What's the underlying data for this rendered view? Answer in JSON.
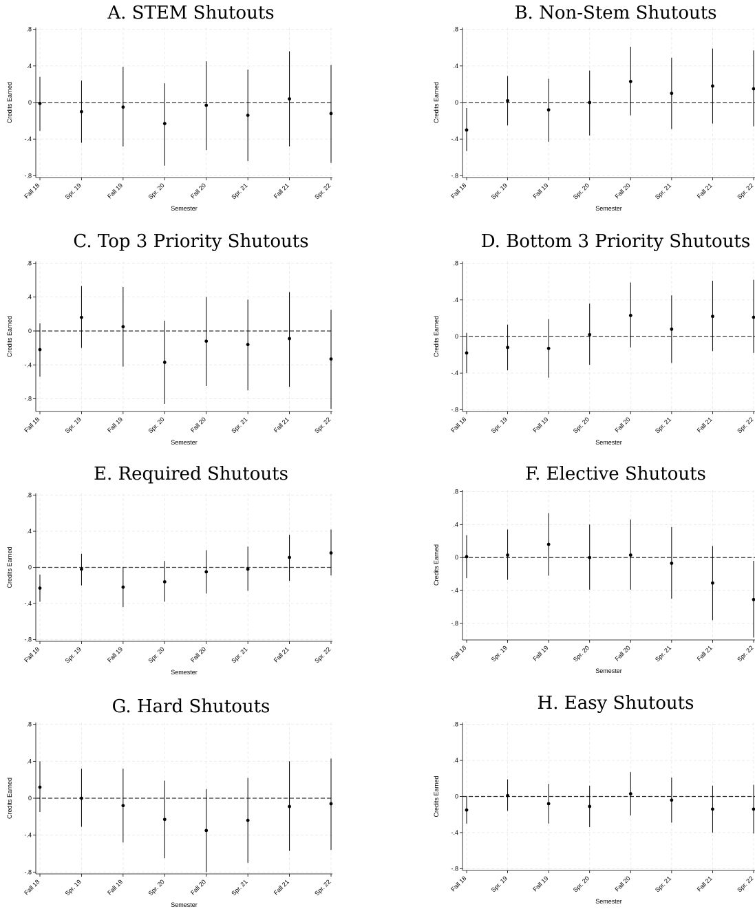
{
  "chart_data": [
    {
      "type": "scatter",
      "title": "A. STEM Shutouts",
      "xlabel": "Semester",
      "ylabel": "Credits Earned",
      "categories": [
        "Fall 18",
        "Spr. 19",
        "Fall 19",
        "Spr. 20",
        "Fall 20",
        "Spr. 21",
        "Fall 21",
        "Spr. 22"
      ],
      "ylim": [
        -0.82,
        0.82
      ],
      "yticks": [
        ".8",
        ".4",
        "0",
        "-.4",
        "-.8"
      ],
      "estimates": [
        -0.01,
        -0.1,
        -0.05,
        -0.23,
        -0.03,
        -0.14,
        0.04,
        -0.12
      ],
      "ci_low": [
        -0.31,
        -0.44,
        -0.48,
        -0.69,
        -0.52,
        -0.64,
        -0.48,
        -0.66
      ],
      "ci_high": [
        0.28,
        0.24,
        0.39,
        0.21,
        0.45,
        0.36,
        0.56,
        0.41
      ]
    },
    {
      "type": "scatter",
      "title": "B. Non-Stem Shutouts",
      "xlabel": "Semester",
      "ylabel": "Credits Earned",
      "categories": [
        "Fall 18",
        "Spr. 19",
        "Fall 19",
        "Spr. 20",
        "Fall 20",
        "Spr. 21",
        "Fall 21",
        "Spr. 22"
      ],
      "ylim": [
        -0.82,
        0.82
      ],
      "yticks": [
        ".8",
        ".4",
        "0",
        "-.4",
        "-.8"
      ],
      "estimates": [
        -0.3,
        0.02,
        -0.08,
        0.0,
        0.23,
        0.1,
        0.18,
        0.15
      ],
      "ci_low": [
        -0.53,
        -0.25,
        -0.43,
        -0.36,
        -0.14,
        -0.29,
        -0.23,
        -0.26
      ],
      "ci_high": [
        -0.06,
        0.29,
        0.26,
        0.35,
        0.61,
        0.49,
        0.59,
        0.57
      ]
    },
    {
      "type": "scatter",
      "title": "C. Top 3 Priority Shutouts",
      "xlabel": "Semester",
      "ylabel": "Credits Earned",
      "categories": [
        "Fall 18",
        "Spr. 19",
        "Fall 19",
        "Spr. 20",
        "Fall 20",
        "Spr. 21",
        "Fall 21",
        "Spr. 22"
      ],
      "ylim": [
        -0.95,
        0.82
      ],
      "yticks": [
        ".8",
        ".4",
        "0",
        "-.4",
        "-.8"
      ],
      "estimates": [
        -0.22,
        0.16,
        0.05,
        -0.37,
        -0.12,
        -0.16,
        -0.09,
        -0.33
      ],
      "ci_low": [
        -0.54,
        -0.2,
        -0.42,
        -0.86,
        -0.65,
        -0.7,
        -0.66,
        -0.92
      ],
      "ci_high": [
        0.09,
        0.53,
        0.52,
        0.12,
        0.4,
        0.37,
        0.46,
        0.25
      ]
    },
    {
      "type": "scatter",
      "title": "D. Bottom 3 Priority Shutouts",
      "xlabel": "Semester",
      "ylabel": "Credits Earned",
      "categories": [
        "Fall 18",
        "Spr. 19",
        "Fall 19",
        "Spr. 20",
        "Fall 20",
        "Spr. 21",
        "Fall 21",
        "Spr. 22"
      ],
      "ylim": [
        -0.82,
        0.82
      ],
      "yticks": [
        ".8",
        ".4",
        "0",
        "-.4",
        "-.8"
      ],
      "estimates": [
        -0.18,
        -0.12,
        -0.13,
        0.02,
        0.23,
        0.08,
        0.22,
        0.21
      ],
      "ci_low": [
        -0.4,
        -0.37,
        -0.45,
        -0.31,
        -0.12,
        -0.29,
        -0.16,
        -0.18
      ],
      "ci_high": [
        0.04,
        0.13,
        0.19,
        0.36,
        0.59,
        0.45,
        0.61,
        0.62
      ]
    },
    {
      "type": "scatter",
      "title": "E. Required Shutouts",
      "xlabel": "Semester",
      "ylabel": "Credits Earned",
      "categories": [
        "Fall 18",
        "Spr. 19",
        "Fall 19",
        "Spr. 20",
        "Fall 20",
        "Spr. 21",
        "Fall 21",
        "Spr. 22"
      ],
      "ylim": [
        -0.82,
        0.82
      ],
      "yticks": [
        ".8",
        ".4",
        "0",
        "-.4",
        "-.8"
      ],
      "estimates": [
        -0.23,
        -0.02,
        -0.22,
        -0.16,
        -0.05,
        -0.02,
        0.11,
        0.16
      ],
      "ci_low": [
        -0.38,
        -0.2,
        -0.44,
        -0.38,
        -0.29,
        -0.26,
        -0.15,
        -0.09
      ],
      "ci_high": [
        -0.08,
        0.15,
        0.0,
        0.07,
        0.19,
        0.23,
        0.36,
        0.42
      ]
    },
    {
      "type": "scatter",
      "title": "F. Elective Shutouts",
      "xlabel": "Semester",
      "ylabel": "Credits Earned",
      "categories": [
        "Fall 18",
        "Spr. 19",
        "Fall 19",
        "Spr. 20",
        "Fall 20",
        "Spr. 21",
        "Fall 21",
        "Spr. 22"
      ],
      "ylim": [
        -1.0,
        0.82
      ],
      "yticks": [
        ".8",
        ".4",
        "0",
        "-.4",
        "-.8"
      ],
      "estimates": [
        0.01,
        0.03,
        0.16,
        0.0,
        0.03,
        -0.07,
        -0.31,
        -0.51
      ],
      "ci_low": [
        -0.25,
        -0.27,
        -0.22,
        -0.39,
        -0.39,
        -0.5,
        -0.76,
        -0.97
      ],
      "ci_high": [
        0.27,
        0.34,
        0.54,
        0.4,
        0.46,
        0.37,
        0.14,
        -0.04
      ]
    },
    {
      "type": "scatter",
      "title": "G. Hard Shutouts",
      "xlabel": "Semester",
      "ylabel": "Credits Earned",
      "categories": [
        "Fall 18",
        "Spr. 19",
        "Fall 19",
        "Spr. 20",
        "Fall 20",
        "Spr. 21",
        "Fall 21",
        "Spr. 22"
      ],
      "ylim": [
        -0.82,
        0.82
      ],
      "yticks": [
        ".8",
        ".4",
        "0",
        "-.4",
        "-.8"
      ],
      "estimates": [
        0.12,
        0.0,
        -0.08,
        -0.23,
        -0.35,
        -0.24,
        -0.09,
        -0.06
      ],
      "ci_low": [
        -0.15,
        -0.31,
        -0.48,
        -0.65,
        -0.8,
        -0.7,
        -0.57,
        -0.56
      ],
      "ci_high": [
        0.4,
        0.32,
        0.32,
        0.19,
        0.1,
        0.22,
        0.4,
        0.43
      ]
    },
    {
      "type": "scatter",
      "title": "H. Easy Shutouts",
      "xlabel": "Semester",
      "ylabel": "Credits Earned",
      "categories": [
        "Fall 18",
        "Spr. 19",
        "Fall 19",
        "Spr. 20",
        "Fall 20",
        "Spr. 21",
        "Fall 21",
        "Spr. 22"
      ],
      "ylim": [
        -0.82,
        0.82
      ],
      "yticks": [
        ".8",
        ".4",
        "0",
        "-.4",
        "-.8"
      ],
      "estimates": [
        -0.15,
        0.01,
        -0.08,
        -0.11,
        0.03,
        -0.04,
        -0.14,
        -0.14
      ],
      "ci_low": [
        -0.3,
        -0.16,
        -0.3,
        -0.34,
        -0.21,
        -0.29,
        -0.4,
        -0.41
      ],
      "ci_high": [
        0.0,
        0.19,
        0.14,
        0.12,
        0.27,
        0.21,
        0.12,
        0.13
      ]
    }
  ]
}
